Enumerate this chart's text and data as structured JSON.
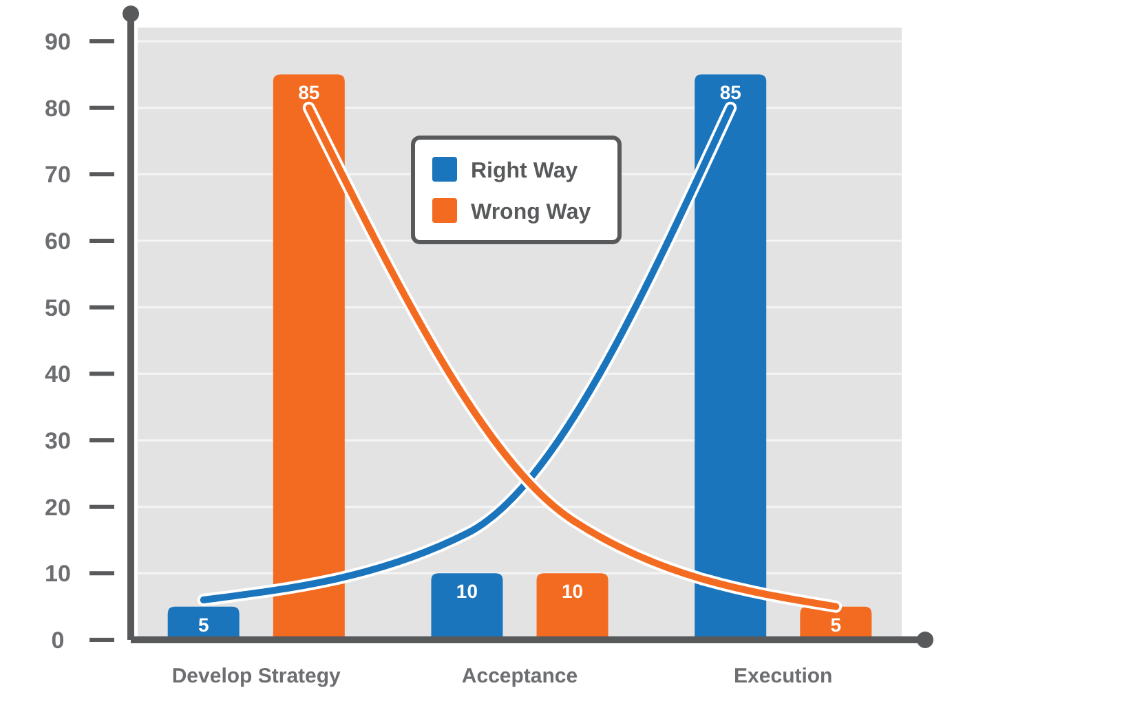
{
  "chart_data": {
    "type": "bar",
    "categories": [
      "Develop Strategy",
      "Acceptance",
      "Execution"
    ],
    "series": [
      {
        "name": "Right Way",
        "color": "#1b75bc",
        "values": [
          5,
          10,
          85
        ],
        "value_labels": [
          "5",
          "10",
          "85"
        ]
      },
      {
        "name": "Wrong Way",
        "color": "#f26b21",
        "values": [
          85,
          10,
          5
        ],
        "value_labels": [
          "85",
          "10",
          "5"
        ]
      },
      {
        "type": "line",
        "color": "#1b75bc",
        "values": [
          6,
          16,
          80
        ]
      },
      {
        "type": "line",
        "color": "#f26b21",
        "values": [
          80,
          18,
          5
        ]
      }
    ],
    "ylim": [
      0,
      90
    ],
    "yticks": [
      0,
      10,
      20,
      30,
      40,
      50,
      60,
      70,
      80,
      90
    ],
    "grid": "y",
    "legend": "top"
  }
}
